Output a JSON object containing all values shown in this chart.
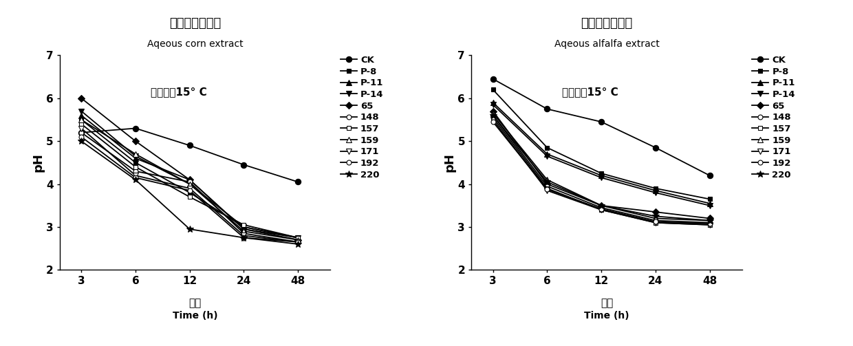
{
  "time_points": [
    3,
    6,
    12,
    24,
    48
  ],
  "corn": {
    "title_cn": "玉米绿汁发酵液",
    "title_en": "Aqeous corn extract",
    "annotation": "培养温度15° C",
    "series": {
      "CK": [
        5.2,
        5.3,
        4.9,
        4.45,
        4.05
      ],
      "P-8": [
        5.5,
        4.5,
        3.8,
        3.0,
        2.75
      ],
      "P-11": [
        5.6,
        4.6,
        4.1,
        2.95,
        2.75
      ],
      "P-14": [
        5.7,
        4.65,
        4.0,
        3.0,
        2.75
      ],
      "65": [
        6.0,
        5.0,
        4.1,
        2.95,
        2.7
      ],
      "148": [
        5.2,
        4.3,
        4.05,
        2.85,
        2.65
      ],
      "157": [
        5.4,
        4.4,
        3.7,
        3.05,
        2.75
      ],
      "159": [
        5.5,
        4.7,
        4.0,
        2.9,
        2.7
      ],
      "171": [
        5.3,
        4.2,
        3.9,
        2.8,
        2.65
      ],
      "192": [
        5.1,
        4.15,
        3.85,
        2.75,
        2.65
      ],
      "220": [
        5.0,
        4.1,
        2.95,
        2.75,
        2.6
      ]
    }
  },
  "alfalfa": {
    "title_cn": "苜蓿绿汁发酵液",
    "title_en": "Aqeous alfalfa extract",
    "annotation": "培养温度15° C",
    "series": {
      "CK": [
        6.45,
        5.75,
        5.45,
        4.85,
        4.2
      ],
      "P-8": [
        6.2,
        4.85,
        4.25,
        3.9,
        3.65
      ],
      "P-11": [
        5.9,
        4.7,
        4.2,
        3.85,
        3.55
      ],
      "P-14": [
        5.85,
        4.65,
        4.15,
        3.8,
        3.5
      ],
      "65": [
        5.7,
        4.0,
        3.5,
        3.35,
        3.2
      ],
      "148": [
        5.6,
        3.95,
        3.45,
        3.15,
        3.1
      ],
      "157": [
        5.55,
        3.9,
        3.4,
        3.1,
        3.05
      ],
      "159": [
        5.65,
        4.1,
        3.5,
        3.2,
        3.15
      ],
      "171": [
        5.5,
        3.85,
        3.4,
        3.1,
        3.05
      ],
      "192": [
        5.45,
        3.88,
        3.42,
        3.12,
        3.08
      ],
      "220": [
        5.6,
        4.05,
        3.5,
        3.25,
        3.15
      ]
    }
  },
  "markers": {
    "CK": {
      "marker": "o",
      "ms": 6,
      "mfc": "black"
    },
    "P-8": {
      "marker": "s",
      "ms": 5,
      "mfc": "black"
    },
    "P-11": {
      "marker": "^",
      "ms": 6,
      "mfc": "black"
    },
    "P-14": {
      "marker": "v",
      "ms": 6,
      "mfc": "black"
    },
    "65": {
      "marker": "D",
      "ms": 5,
      "mfc": "black"
    },
    "148": {
      "marker": "o",
      "ms": 5,
      "mfc": "white"
    },
    "157": {
      "marker": "s",
      "ms": 5,
      "mfc": "white"
    },
    "159": {
      "marker": "^",
      "ms": 6,
      "mfc": "white"
    },
    "171": {
      "marker": "v",
      "ms": 6,
      "mfc": "white"
    },
    "192": {
      "marker": "o",
      "ms": 5,
      "mfc": "white"
    },
    "220": {
      "marker": "*",
      "ms": 7,
      "mfc": "black"
    }
  },
  "ylim": [
    2,
    7
  ],
  "yticks": [
    2,
    3,
    4,
    5,
    6,
    7
  ],
  "ylabel": "pH",
  "xlabel_cn": "时间",
  "xlabel_en": "Time (h)",
  "line_color": "black",
  "linewidth": 1.3,
  "legend_labels": [
    "CK",
    "P-8",
    "P-11",
    "P-14",
    "65",
    "148",
    "157",
    "159",
    "171",
    "192",
    "220"
  ],
  "x_positions": [
    0,
    1,
    2,
    3,
    4
  ],
  "x_labels": [
    "3",
    "6",
    "12",
    "24",
    "48"
  ]
}
